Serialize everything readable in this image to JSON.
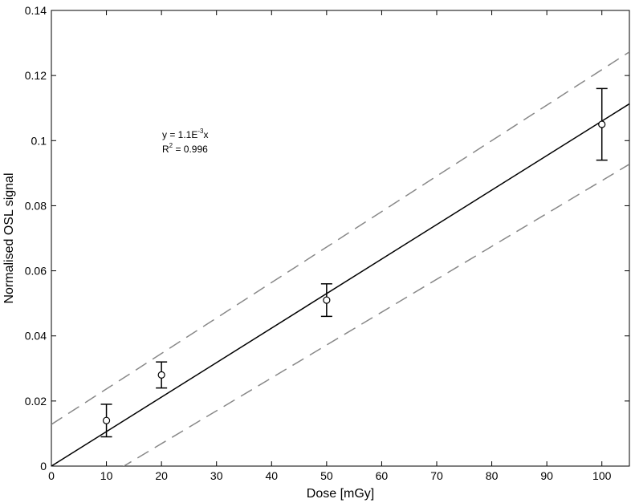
{
  "chart_data": {
    "type": "scatter",
    "title": "",
    "xlabel": "Dose [mGy]",
    "ylabel": "Normalised OSL signal",
    "xlim": [
      0,
      105
    ],
    "ylim": [
      0,
      0.14
    ],
    "x_ticks": [
      "0",
      "10",
      "20",
      "30",
      "40",
      "50",
      "60",
      "70",
      "80",
      "90",
      "100"
    ],
    "y_ticks": [
      "0",
      "0.02",
      "0.04",
      "0.06",
      "0.08",
      "0.1",
      "0.12",
      "0.14"
    ],
    "grid": false,
    "series": [
      {
        "type": "scatter",
        "marker": "open-circle",
        "x": [
          10,
          20,
          50,
          100
        ],
        "y": [
          0.014,
          0.028,
          0.051,
          0.105
        ],
        "yerr_low": [
          0.009,
          0.024,
          0.046,
          0.094
        ],
        "yerr_high": [
          0.019,
          0.032,
          0.056,
          0.116
        ]
      },
      {
        "type": "line",
        "style": "solid",
        "color": "#000000",
        "slope": 0.00106,
        "intercept": 0
      },
      {
        "type": "line",
        "style": "dashed",
        "color": "#888888",
        "slope": 0.00109,
        "intercept": 0.0128
      },
      {
        "type": "line",
        "style": "dashed",
        "color": "#888888",
        "slope": 0.00101,
        "intercept": -0.0133
      }
    ],
    "annotation": {
      "line1_prefix": "y = 1.1E",
      "line1_sup": "-3",
      "line1_suffix": "x",
      "line2_prefix": "R",
      "line2_sup": "2",
      "line2_suffix": " = 0.996"
    }
  }
}
